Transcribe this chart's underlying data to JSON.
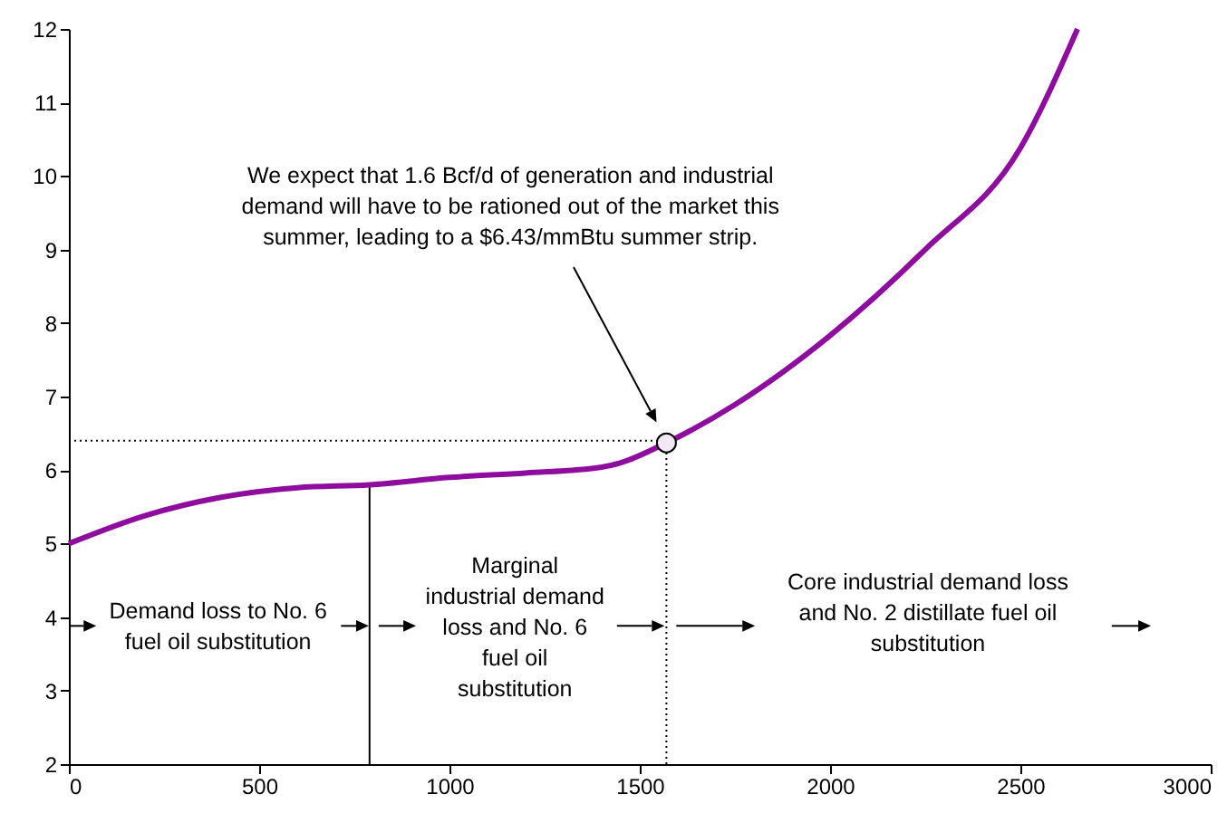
{
  "chart_data": {
    "type": "line",
    "x": [
      0,
      200,
      400,
      600,
      790,
      1000,
      1200,
      1400,
      1450,
      1570,
      1750,
      2000,
      2250,
      2500,
      2650
    ],
    "series": [
      {
        "color": "#8e0d9e",
        "values": [
          5.0,
          5.38,
          5.63,
          5.76,
          5.8,
          5.9,
          5.96,
          6.04,
          6.1,
          6.37,
          6.89,
          7.83,
          9.0,
          10.38,
          12.0
        ]
      },
      {
        "type": "scatter",
        "x": [
          1570
        ],
        "values": [
          6.37
        ],
        "color": "#f3e6f5",
        "marker": "circle"
      }
    ],
    "xlim": [
      0,
      3000
    ],
    "xticks": [
      0,
      500,
      1000,
      1500,
      2000,
      2500,
      3000
    ],
    "ylim": [
      2,
      12
    ],
    "yticks": [
      2,
      3,
      4,
      5,
      6,
      7,
      8,
      9,
      10,
      11,
      12
    ],
    "marker": "none",
    "line_style": "solid",
    "ref_lines": [
      {
        "axis": "x",
        "value": 790,
        "line_style": "solid",
        "color": "#000000"
      },
      {
        "axis": "x",
        "value": 1570,
        "line_style": "dotted",
        "color": "#000000"
      },
      {
        "axis": "y",
        "value": 6.4,
        "line_style": "dotted",
        "color": "#000000"
      }
    ],
    "annotations": [
      "We expect that 1.6 Bcf/d of generation and industrial\ndemand will have to be rationed out of the market this\nsummer, leading to a $6.43/mmBtu summer strip.",
      "Demand loss to No. 6\nfuel oil substitution",
      "Marginal\nindustrial demand\nloss and No. 6\nfuel oil\nsubstitution",
      "Core industrial demand loss\nand No. 2 distillate fuel oil\nsubstitution"
    ]
  }
}
